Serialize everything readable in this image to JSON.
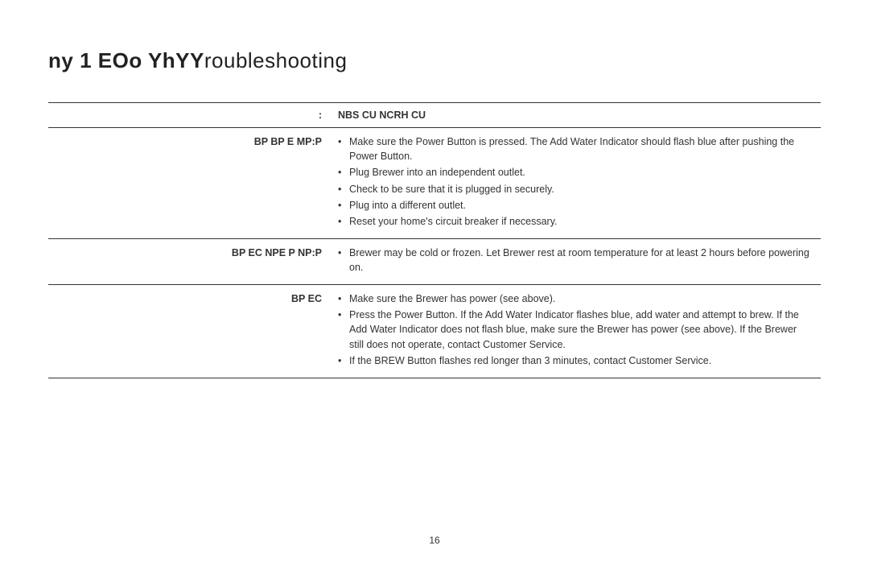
{
  "section": {
    "number_prefix": "ny 1 EOo   YhYY",
    "title_rest": "roubleshooting"
  },
  "table_headers": {
    "problem": ": ",
    "solution": "NBS    CU    NCRH  CU"
  },
  "rows": [
    {
      "problem": "BP BP E MP:P ",
      "solutions": [
        "Make sure the Power Button is pressed. The Add Water Indicator should flash blue after pushing the Power Button.",
        "Plug Brewer into an independent outlet.",
        "Check to be sure that it is plugged in securely.",
        "Plug into a different outlet.",
        "Reset your home's circuit breaker if necessary."
      ]
    },
    {
      "problem": "BP  EC  NPE P  NP:P ",
      "solutions": [
        "Brewer may be cold or frozen. Let Brewer rest at room temperature for at least 2 hours before powering on."
      ]
    },
    {
      "problem": "BP  EC  ",
      "solutions": [
        "Make sure the Brewer has power (see above).",
        "Press the Power Button. If the Add Water Indicator flashes blue, add water and attempt to brew. If the Add Water Indicator does not flash blue, make sure the Brewer has power (see above). If the Brewer still does not operate, contact Customer Service.",
        "If the BREW Button flashes red longer than 3 minutes, contact Customer Service."
      ]
    }
  ],
  "page_number": "16"
}
